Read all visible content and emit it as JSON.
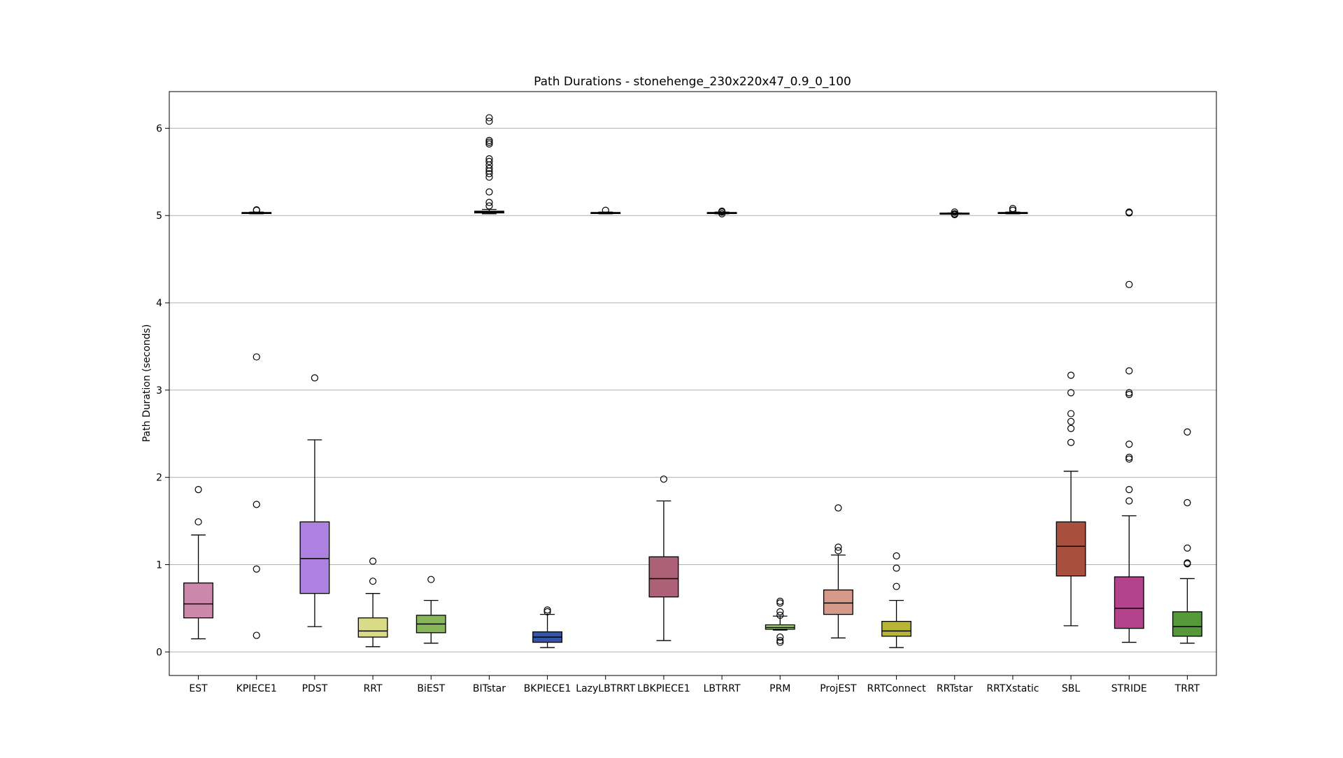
{
  "chart_data": {
    "type": "box",
    "title": "Path Durations - stonehenge_230x220x47_0.9_0_100",
    "xlabel": "",
    "ylabel": "Path Duration (seconds)",
    "ylim": [
      -0.27,
      6.42
    ],
    "yticks": [
      0,
      1,
      2,
      3,
      4,
      5,
      6
    ],
    "grid": "horizontal",
    "categories": [
      "EST",
      "KPIECE1",
      "PDST",
      "RRT",
      "BiEST",
      "BITstar",
      "BKPIECE1",
      "LazyLBTRRT",
      "LBKPIECE1",
      "LBTRRT",
      "PRM",
      "ProjEST",
      "RRTConnect",
      "RRTstar",
      "RRTXstatic",
      "SBL",
      "STRIDE",
      "TRRT"
    ],
    "boxes": [
      {
        "name": "EST",
        "color": "#cc88aa",
        "whisker_low": 0.15,
        "q1": 0.39,
        "median": 0.55,
        "q3": 0.79,
        "whisker_high": 1.34,
        "outliers": [
          1.49,
          1.86
        ]
      },
      {
        "name": "KPIECE1",
        "color": "#9a9abe",
        "whisker_low": 5.02,
        "q1": 5.025,
        "median": 5.03,
        "q3": 5.035,
        "whisker_high": 5.04,
        "outliers": [
          0.19,
          0.95,
          1.69,
          3.38,
          5.06,
          5.065
        ]
      },
      {
        "name": "PDST",
        "color": "#ad81e0",
        "whisker_low": 0.29,
        "q1": 0.67,
        "median": 1.07,
        "q3": 1.49,
        "whisker_high": 2.43,
        "outliers": [
          3.14
        ]
      },
      {
        "name": "RRT",
        "color": "#d9db87",
        "whisker_low": 0.06,
        "q1": 0.17,
        "median": 0.24,
        "q3": 0.39,
        "whisker_high": 0.67,
        "outliers": [
          0.81,
          1.04
        ]
      },
      {
        "name": "BiEST",
        "color": "#86b85a",
        "whisker_low": 0.1,
        "q1": 0.22,
        "median": 0.32,
        "q3": 0.42,
        "whisker_high": 0.59,
        "outliers": [
          0.83
        ]
      },
      {
        "name": "BITstar",
        "color": "#4c9a6a",
        "whisker_low": 5.02,
        "q1": 5.03,
        "median": 5.04,
        "q3": 5.05,
        "whisker_high": 5.07,
        "outliers": [
          5.11,
          5.15,
          5.27,
          5.44,
          5.48,
          5.51,
          5.54,
          5.58,
          5.62,
          5.65,
          5.82,
          5.84,
          5.86,
          6.08,
          6.12
        ]
      },
      {
        "name": "BKPIECE1",
        "color": "#3555a8",
        "whisker_low": 0.05,
        "q1": 0.11,
        "median": 0.17,
        "q3": 0.23,
        "whisker_high": 0.43,
        "outliers": [
          0.46,
          0.48
        ]
      },
      {
        "name": "LazyLBTRRT",
        "color": "#5c7fa8",
        "whisker_low": 5.02,
        "q1": 5.025,
        "median": 5.03,
        "q3": 5.035,
        "whisker_high": 5.04,
        "outliers": [
          5.06
        ]
      },
      {
        "name": "LBKPIECE1",
        "color": "#ad6178",
        "whisker_low": 0.13,
        "q1": 0.63,
        "median": 0.84,
        "q3": 1.09,
        "whisker_high": 1.73,
        "outliers": [
          1.98
        ]
      },
      {
        "name": "LBTRRT",
        "color": "#7a8a7a",
        "whisker_low": 5.02,
        "q1": 5.025,
        "median": 5.03,
        "q3": 5.035,
        "whisker_high": 5.04,
        "outliers": [
          5.02,
          5.04,
          5.05
        ]
      },
      {
        "name": "PRM",
        "color": "#a8d87a",
        "whisker_low": 0.25,
        "q1": 0.26,
        "median": 0.28,
        "q3": 0.31,
        "whisker_high": 0.41,
        "outliers": [
          0.11,
          0.13,
          0.17,
          0.42,
          0.46,
          0.56,
          0.58
        ]
      },
      {
        "name": "ProjEST",
        "color": "#d79a8a",
        "whisker_low": 0.16,
        "q1": 0.43,
        "median": 0.56,
        "q3": 0.71,
        "whisker_high": 1.11,
        "outliers": [
          1.16,
          1.2,
          1.65
        ]
      },
      {
        "name": "RRTConnect",
        "color": "#b7b536",
        "whisker_low": 0.05,
        "q1": 0.18,
        "median": 0.24,
        "q3": 0.35,
        "whisker_high": 0.59,
        "outliers": [
          0.75,
          0.96,
          1.1
        ]
      },
      {
        "name": "RRTstar",
        "color": "#607080",
        "whisker_low": 5.02,
        "q1": 5.022,
        "median": 5.025,
        "q3": 5.028,
        "whisker_high": 5.03,
        "outliers": [
          5.01,
          5.02,
          5.04
        ]
      },
      {
        "name": "RRTXstatic",
        "color": "#7a9a8a",
        "whisker_low": 5.02,
        "q1": 5.025,
        "median": 5.03,
        "q3": 5.035,
        "whisker_high": 5.04,
        "outliers": [
          5.06,
          5.08
        ]
      },
      {
        "name": "SBL",
        "color": "#a84f3e",
        "whisker_low": 0.3,
        "q1": 0.87,
        "median": 1.21,
        "q3": 1.49,
        "whisker_high": 2.07,
        "outliers": [
          2.4,
          2.56,
          2.64,
          2.73,
          2.97,
          3.17
        ]
      },
      {
        "name": "STRIDE",
        "color": "#b4428c",
        "whisker_low": 0.11,
        "q1": 0.27,
        "median": 0.5,
        "q3": 0.86,
        "whisker_high": 1.56,
        "outliers": [
          1.73,
          1.86,
          2.21,
          2.23,
          2.38,
          2.95,
          2.97,
          3.22,
          4.21,
          5.03,
          5.04
        ]
      },
      {
        "name": "TRRT",
        "color": "#56993a",
        "whisker_low": 0.1,
        "q1": 0.18,
        "median": 0.29,
        "q3": 0.46,
        "whisker_high": 0.84,
        "outliers": [
          1.01,
          1.02,
          1.19,
          1.71,
          2.52
        ]
      }
    ]
  }
}
